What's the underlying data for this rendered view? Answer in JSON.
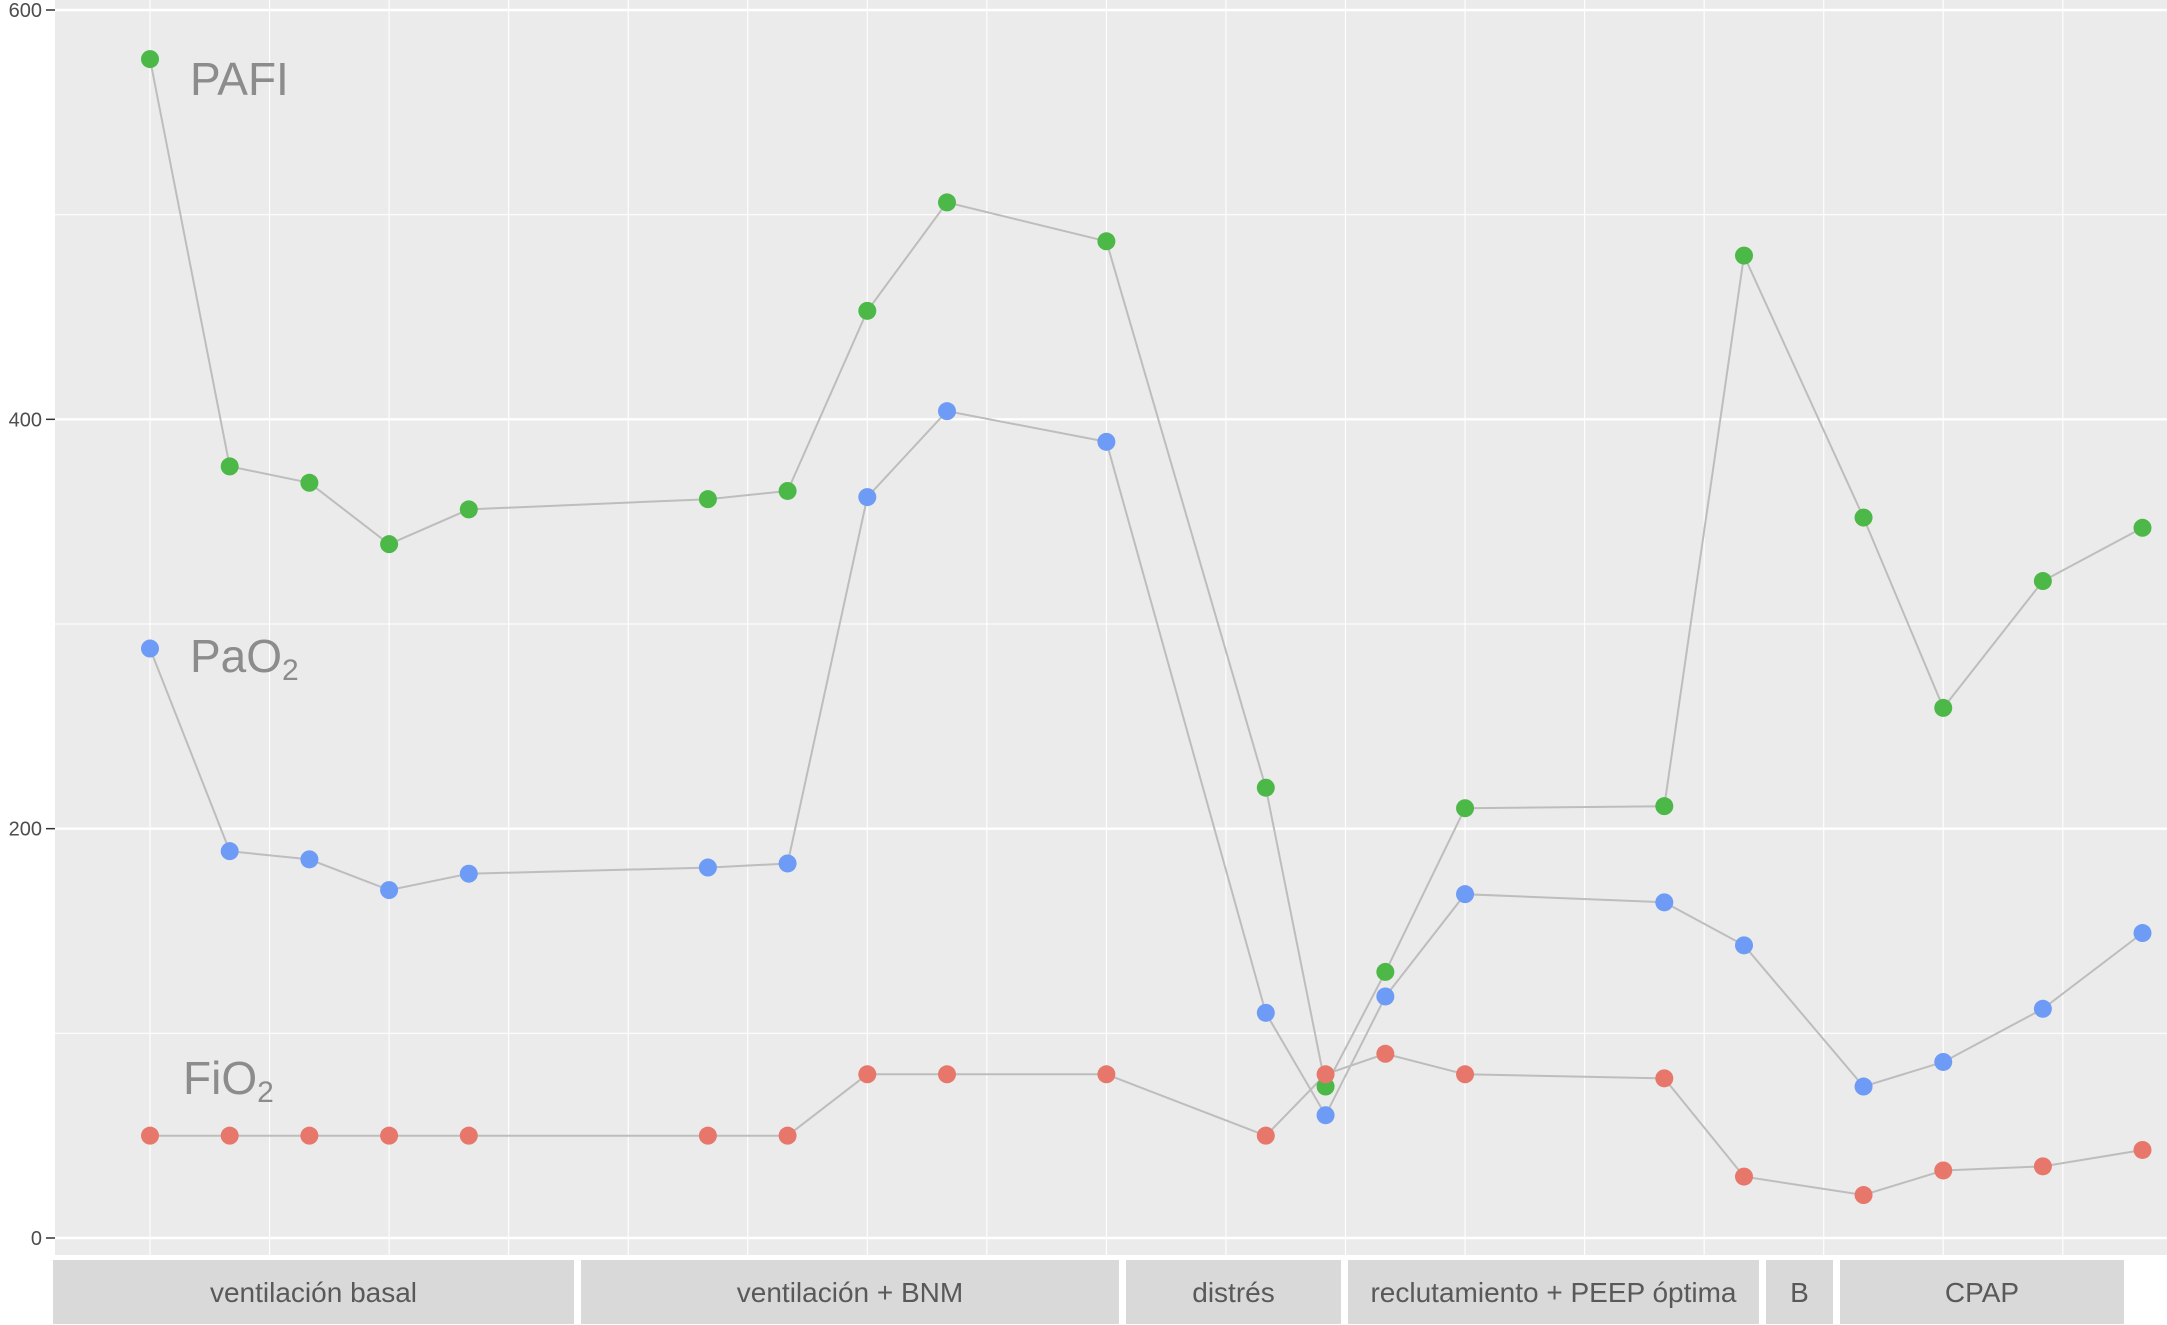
{
  "chart_data": {
    "type": "line",
    "title": "",
    "xlabel": "",
    "ylabel": "",
    "ylim": [
      0,
      600
    ],
    "yticks": [
      0,
      200,
      400,
      600
    ],
    "xlim": [
      0.5,
      25.5
    ],
    "x": [
      1,
      2,
      3,
      4,
      5,
      8,
      9,
      10,
      11,
      13,
      15,
      15.75,
      16.5,
      17.5,
      20,
      21,
      22.5,
      23.5,
      24.75,
      26
    ],
    "grid": true,
    "legend": "inline labels",
    "series": [
      {
        "name": "PAFI",
        "name_sub": "",
        "color": "#4cb848",
        "values": [
          576,
          377,
          369,
          339,
          356,
          361,
          365,
          453,
          506,
          487,
          220,
          74,
          130,
          210,
          211,
          480,
          352,
          259,
          321,
          347
        ]
      },
      {
        "name": "PaO",
        "name_sub": "2",
        "color": "#6e9bf5",
        "values": [
          288,
          189,
          185,
          170,
          178,
          181,
          183,
          362,
          404,
          389,
          110,
          60,
          118,
          168,
          164,
          143,
          74,
          86,
          112,
          149
        ]
      },
      {
        "name": "FiO",
        "name_sub": "2",
        "color": "#e8776b",
        "values": [
          50,
          50,
          50,
          50,
          50,
          50,
          50,
          80,
          80,
          80,
          50,
          80,
          90,
          80,
          78,
          30,
          21,
          33,
          35,
          43
        ]
      }
    ],
    "phases": [
      {
        "label": "ventilación basal"
      },
      {
        "label": "ventilación + BNM"
      },
      {
        "label": "distrés"
      },
      {
        "label": "reclutamiento + PEEP óptima"
      },
      {
        "label": "B"
      },
      {
        "label": "CPAP"
      }
    ]
  }
}
